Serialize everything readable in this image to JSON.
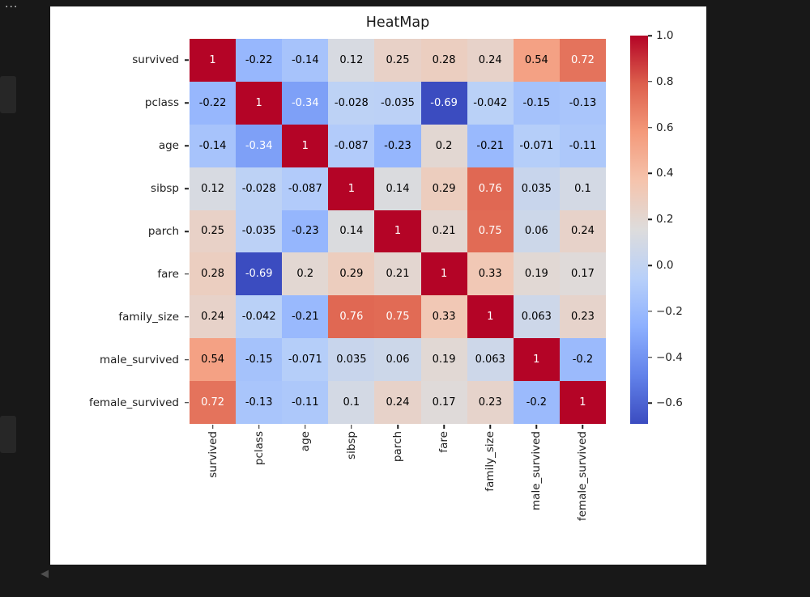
{
  "page": {
    "overflow_label": "···",
    "collapse_glyph": "◀"
  },
  "chart_data": {
    "type": "heatmap",
    "title": "HeatMap",
    "labels": [
      "survived",
      "pclass",
      "age",
      "sibsp",
      "parch",
      "fare",
      "family_size",
      "male_survived",
      "female_survived"
    ],
    "matrix": [
      [
        "1",
        "-0.22",
        "-0.14",
        "0.12",
        "0.25",
        "0.28",
        "0.24",
        "0.54",
        "0.72"
      ],
      [
        "-0.22",
        "1",
        "-0.34",
        "-0.028",
        "-0.035",
        "-0.69",
        "-0.042",
        "-0.15",
        "-0.13"
      ],
      [
        "-0.14",
        "-0.34",
        "1",
        "-0.087",
        "-0.23",
        "0.2",
        "-0.21",
        "-0.071",
        "-0.11"
      ],
      [
        "0.12",
        "-0.028",
        "-0.087",
        "1",
        "0.14",
        "0.29",
        "0.76",
        "0.035",
        "0.1"
      ],
      [
        "0.25",
        "-0.035",
        "-0.23",
        "0.14",
        "1",
        "0.21",
        "0.75",
        "0.06",
        "0.24"
      ],
      [
        "0.28",
        "-0.69",
        "0.2",
        "0.29",
        "0.21",
        "1",
        "0.33",
        "0.19",
        "0.17"
      ],
      [
        "0.24",
        "-0.042",
        "-0.21",
        "0.76",
        "0.75",
        "0.33",
        "1",
        "0.063",
        "0.23"
      ],
      [
        "0.54",
        "-0.15",
        "-0.071",
        "0.035",
        "0.06",
        "0.19",
        "0.063",
        "1",
        "-0.2"
      ],
      [
        "0.72",
        "-0.13",
        "-0.11",
        "0.1",
        "0.24",
        "0.17",
        "0.23",
        "-0.2",
        "1"
      ]
    ],
    "vmin": -0.69,
    "vmax": 1.0,
    "colormap": "coolwarm",
    "colorbar_ticks": [
      "1.0",
      "0.8",
      "0.6",
      "0.4",
      "0.2",
      "0.0",
      "−0.2",
      "−0.4",
      "−0.6"
    ],
    "colorbar_tick_values": [
      1.0,
      0.8,
      0.6,
      0.4,
      0.2,
      0.0,
      -0.2,
      -0.4,
      -0.6
    ],
    "legend_position": "right-colorbar",
    "grid": false
  },
  "colors": {
    "page_bg": "#181818",
    "figure_bg": "#ffffff",
    "cmap_low": "#3b4cc0",
    "cmap_mid": "#dddcdc",
    "cmap_high": "#b40426",
    "annot_dark": "#000000",
    "annot_light": "#ffffff",
    "tick_text": "#1f1f1f"
  }
}
